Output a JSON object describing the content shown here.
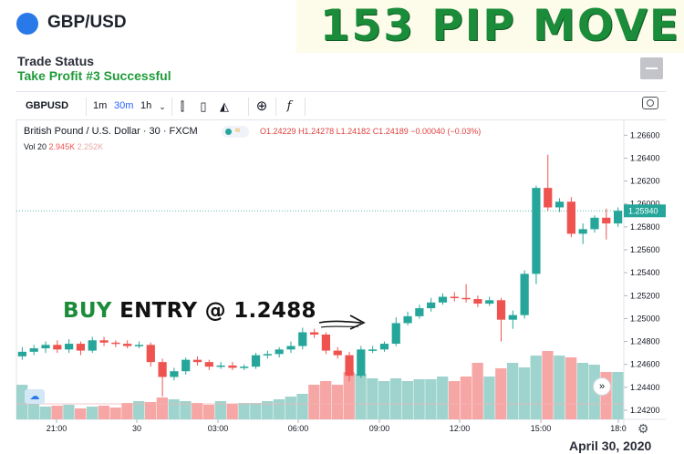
{
  "header": {
    "pair_title": "GBP/USD",
    "banner": "153 PIP MOVE"
  },
  "status": {
    "label": "Trade Status",
    "value": "Take Profit #3 Successful"
  },
  "toolbar": {
    "symbol": "GBPUSD",
    "intervals": [
      "1m",
      "30m",
      "1h"
    ],
    "active_interval": "30m",
    "dropdown_icon": "chevron-down-icon",
    "icons": [
      "bar-style-icon",
      "candle-style-icon",
      "area-style-icon",
      "add-indicator-icon",
      "formula-icon",
      "camera-icon"
    ]
  },
  "chart_info": {
    "title": "British Pound / U.S. Dollar · 30 · FXCM",
    "ohlc": {
      "o": "O1.24229",
      "h": "H1.24278",
      "l": "L1.24182",
      "c": "C1.24189",
      "change": "−0.00040 (−0.03%)"
    },
    "vol_label": "Vol 20",
    "vol_value": "2.945K",
    "vol_ma": "2.252K"
  },
  "annotation": {
    "buy": "BUY",
    "rest": "ENTRY @  1.2488"
  },
  "date_caption": "April 30, 2020",
  "colors": {
    "up": "#26a69a",
    "down": "#ef5350",
    "vol_up": "#9fd4ce",
    "vol_down": "#f6a7a5",
    "banner": "#1b8c3a"
  },
  "chart_data": {
    "type": "candlestick",
    "price_ticks": [
      "1.26600",
      "1.26400",
      "1.26200",
      "1.26000",
      "1.25800",
      "1.25600",
      "1.25400",
      "1.25200",
      "1.25000",
      "1.24800",
      "1.24600",
      "1.24400",
      "1.24200"
    ],
    "current_price": "1.25940",
    "ylim": [
      1.2412,
      1.2673
    ],
    "time_ticks": [
      "21:00",
      "30",
      "03:00",
      "06:00",
      "09:00",
      "12:00",
      "15:00",
      "18:0"
    ],
    "candles": [
      [
        1.2467,
        1.2471,
        1.2475,
        1.2464
      ],
      [
        1.2471,
        1.2474,
        1.2477,
        1.2468
      ],
      [
        1.2474,
        1.2477,
        1.248,
        1.247
      ],
      [
        1.2477,
        1.2473,
        1.2481,
        1.247
      ],
      [
        1.2473,
        1.2478,
        1.2482,
        1.247
      ],
      [
        1.2478,
        1.2472,
        1.248,
        1.2468
      ],
      [
        1.2472,
        1.2481,
        1.2484,
        1.247
      ],
      [
        1.2481,
        1.2479,
        1.2484,
        1.2476
      ],
      [
        1.2479,
        1.2478,
        1.2481,
        1.2475
      ],
      [
        1.2478,
        1.2476,
        1.2481,
        1.2474
      ],
      [
        1.2476,
        1.2477,
        1.248,
        1.2474
      ],
      [
        1.2477,
        1.2462,
        1.2479,
        1.2458
      ],
      [
        1.2462,
        1.2449,
        1.2465,
        1.2432
      ],
      [
        1.2449,
        1.2454,
        1.2457,
        1.2446
      ],
      [
        1.2454,
        1.2464,
        1.2466,
        1.2451
      ],
      [
        1.2464,
        1.2462,
        1.2467,
        1.2459
      ],
      [
        1.2462,
        1.2458,
        1.2464,
        1.2455
      ],
      [
        1.2458,
        1.2459,
        1.2462,
        1.2456
      ],
      [
        1.2459,
        1.2457,
        1.2462,
        1.2455
      ],
      [
        1.2457,
        1.2458,
        1.246,
        1.2455
      ],
      [
        1.2458,
        1.2468,
        1.247,
        1.2456
      ],
      [
        1.2468,
        1.2469,
        1.2472,
        1.2465
      ],
      [
        1.2469,
        1.2473,
        1.2475,
        1.2466
      ],
      [
        1.2473,
        1.2476,
        1.248,
        1.247
      ],
      [
        1.2476,
        1.2488,
        1.2492,
        1.2473
      ],
      [
        1.2488,
        1.2486,
        1.2491,
        1.2483
      ],
      [
        1.2486,
        1.2472,
        1.2488,
        1.2469
      ],
      [
        1.2472,
        1.2468,
        1.2475,
        1.2465
      ],
      [
        1.2468,
        1.245,
        1.2471,
        1.2445
      ],
      [
        1.245,
        1.2473,
        1.2476,
        1.2448
      ],
      [
        1.2473,
        1.2473,
        1.2476,
        1.247
      ],
      [
        1.2473,
        1.2478,
        1.248,
        1.2471
      ],
      [
        1.2478,
        1.2496,
        1.2501,
        1.2476
      ],
      [
        1.2496,
        1.2502,
        1.2506,
        1.2494
      ],
      [
        1.2502,
        1.2509,
        1.2512,
        1.25
      ],
      [
        1.2509,
        1.2514,
        1.2518,
        1.2506
      ],
      [
        1.2514,
        1.2519,
        1.2522,
        1.2512
      ],
      [
        1.2519,
        1.2518,
        1.2523,
        1.2515
      ],
      [
        1.2518,
        1.2517,
        1.253,
        1.2514
      ],
      [
        1.2517,
        1.2513,
        1.252,
        1.251
      ],
      [
        1.2513,
        1.2516,
        1.2519,
        1.2511
      ],
      [
        1.2516,
        1.2499,
        1.2518,
        1.248
      ],
      [
        1.2499,
        1.2503,
        1.2507,
        1.2491
      ],
      [
        1.2503,
        1.2539,
        1.2542,
        1.25
      ],
      [
        1.2539,
        1.2614,
        1.2616,
        1.253
      ],
      [
        1.2614,
        1.2597,
        1.2643,
        1.2594
      ],
      [
        1.2597,
        1.2602,
        1.2605,
        1.2593
      ],
      [
        1.2602,
        1.2574,
        1.2606,
        1.2571
      ],
      [
        1.2574,
        1.2578,
        1.2583,
        1.2565
      ],
      [
        1.2578,
        1.2588,
        1.259,
        1.2575
      ],
      [
        1.2588,
        1.2583,
        1.2596,
        1.2569
      ],
      [
        1.2583,
        1.2594,
        1.2597,
        1.258
      ]
    ],
    "volume_ylim": [
      0,
      100
    ],
    "volume": [
      38,
      22,
      14,
      15,
      16,
      12,
      14,
      15,
      13,
      18,
      20,
      19,
      24,
      22,
      20,
      18,
      16,
      20,
      17,
      18,
      18,
      20,
      22,
      25,
      28,
      38,
      42,
      38,
      52,
      50,
      45,
      42,
      45,
      42,
      44,
      44,
      47,
      42,
      47,
      62,
      47,
      56,
      62,
      57,
      70,
      75,
      70,
      68,
      62,
      60,
      52,
      52
    ]
  }
}
